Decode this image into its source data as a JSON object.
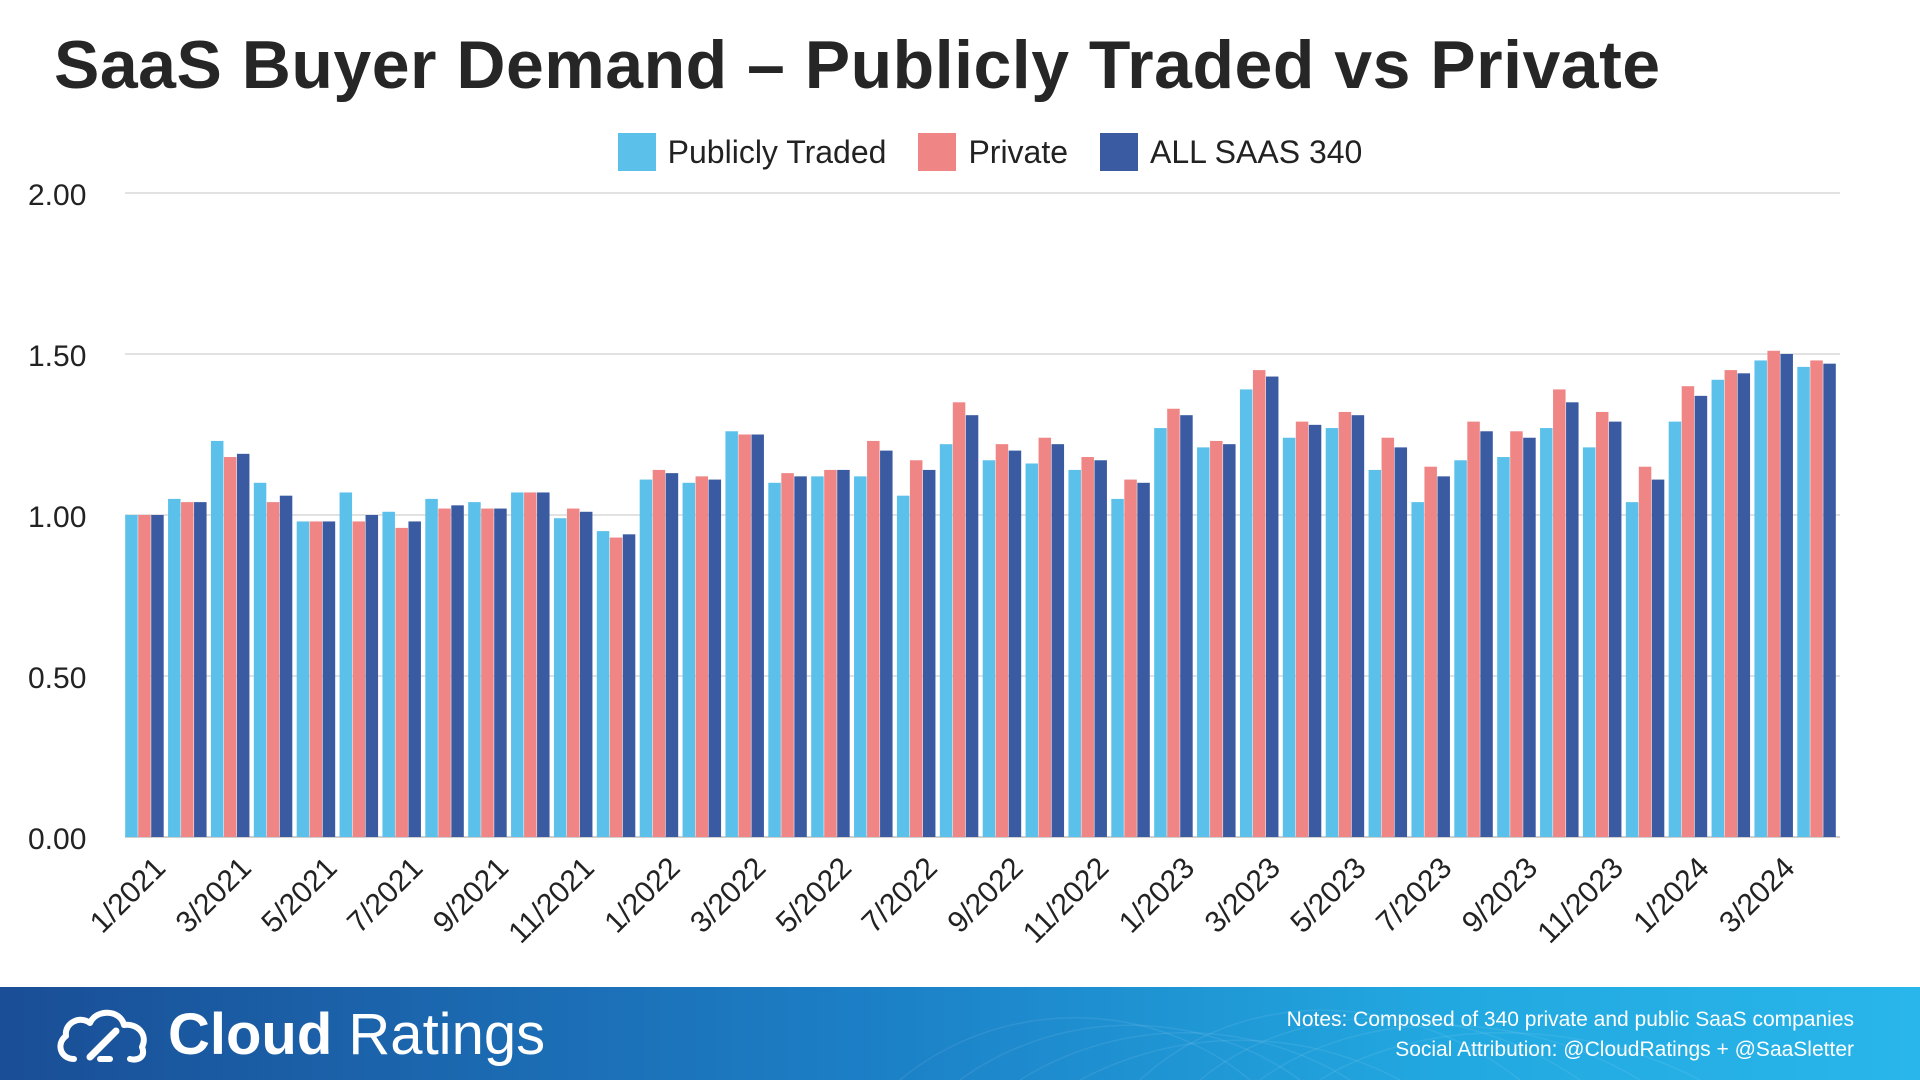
{
  "title": "SaaS Buyer Demand – Publicly Traded vs Private",
  "colors": {
    "public": "#5bc0ea",
    "private": "#ef8585",
    "all": "#3a5ba2",
    "grid": "#d9d9d9",
    "axis_text": "#222222"
  },
  "legend": [
    {
      "label": "Publicly Traded",
      "color": "#5bc0ea"
    },
    {
      "label": "Private",
      "color": "#ef8585"
    },
    {
      "label": "ALL SAAS 340",
      "color": "#3a5ba2"
    }
  ],
  "chart_data": {
    "type": "bar",
    "title": "SaaS Buyer Demand – Publicly Traded vs Private",
    "xlabel": "",
    "ylabel": "",
    "ylim": [
      0,
      2
    ],
    "yticks": [
      "0.00",
      "0.50",
      "1.00",
      "1.50",
      "2.00"
    ],
    "grid": true,
    "legend_position": "top-center",
    "categories": [
      "1/2021",
      "2/2021",
      "3/2021",
      "4/2021",
      "5/2021",
      "6/2021",
      "7/2021",
      "8/2021",
      "9/2021",
      "10/2021",
      "11/2021",
      "12/2021",
      "1/2022",
      "2/2022",
      "3/2022",
      "4/2022",
      "5/2022",
      "6/2022",
      "7/2022",
      "8/2022",
      "9/2022",
      "10/2022",
      "11/2022",
      "12/2022",
      "1/2023",
      "2/2023",
      "3/2023",
      "4/2023",
      "5/2023",
      "6/2023",
      "7/2023",
      "8/2023",
      "9/2023",
      "10/2023",
      "11/2023",
      "12/2023",
      "1/2024",
      "2/2024",
      "3/2024",
      "4/2024"
    ],
    "tick_labels": [
      "1/2021",
      "3/2021",
      "5/2021",
      "7/2021",
      "9/2021",
      "11/2021",
      "1/2022",
      "3/2022",
      "5/2022",
      "7/2022",
      "9/2022",
      "11/2022",
      "1/2023",
      "3/2023",
      "5/2023",
      "7/2023",
      "9/2023",
      "11/2023",
      "1/2024",
      "3/2024"
    ],
    "series": [
      {
        "name": "Publicly Traded",
        "color": "#5bc0ea",
        "values": [
          1.0,
          1.05,
          1.23,
          1.1,
          0.98,
          1.07,
          1.01,
          1.05,
          1.04,
          1.07,
          0.99,
          0.95,
          1.11,
          1.1,
          1.26,
          1.1,
          1.12,
          1.12,
          1.06,
          1.22,
          1.17,
          1.16,
          1.14,
          1.05,
          1.27,
          1.21,
          1.39,
          1.24,
          1.27,
          1.14,
          1.04,
          1.17,
          1.18,
          1.27,
          1.21,
          1.04,
          1.29,
          1.42,
          1.48,
          1.46
        ]
      },
      {
        "name": "Private",
        "color": "#ef8585",
        "values": [
          1.0,
          1.04,
          1.18,
          1.04,
          0.98,
          0.98,
          0.96,
          1.02,
          1.02,
          1.07,
          1.02,
          0.93,
          1.14,
          1.12,
          1.25,
          1.13,
          1.14,
          1.23,
          1.17,
          1.35,
          1.22,
          1.24,
          1.18,
          1.11,
          1.33,
          1.23,
          1.45,
          1.29,
          1.32,
          1.24,
          1.15,
          1.29,
          1.26,
          1.39,
          1.32,
          1.15,
          1.4,
          1.45,
          1.51,
          1.48
        ]
      },
      {
        "name": "ALL SAAS 340",
        "color": "#3a5ba2",
        "values": [
          1.0,
          1.04,
          1.19,
          1.06,
          0.98,
          1.0,
          0.98,
          1.03,
          1.02,
          1.07,
          1.01,
          0.94,
          1.13,
          1.11,
          1.25,
          1.12,
          1.14,
          1.2,
          1.14,
          1.31,
          1.2,
          1.22,
          1.17,
          1.1,
          1.31,
          1.22,
          1.43,
          1.28,
          1.31,
          1.21,
          1.12,
          1.26,
          1.24,
          1.35,
          1.29,
          1.11,
          1.37,
          1.44,
          1.5,
          1.47
        ]
      }
    ]
  },
  "footer": {
    "brand_bold": "Cloud",
    "brand_light": "Ratings",
    "notes_line1": "Notes: Composed of 340 private and public SaaS companies",
    "notes_line2": "Social Attribution: @CloudRatings + @SaaSletter"
  }
}
